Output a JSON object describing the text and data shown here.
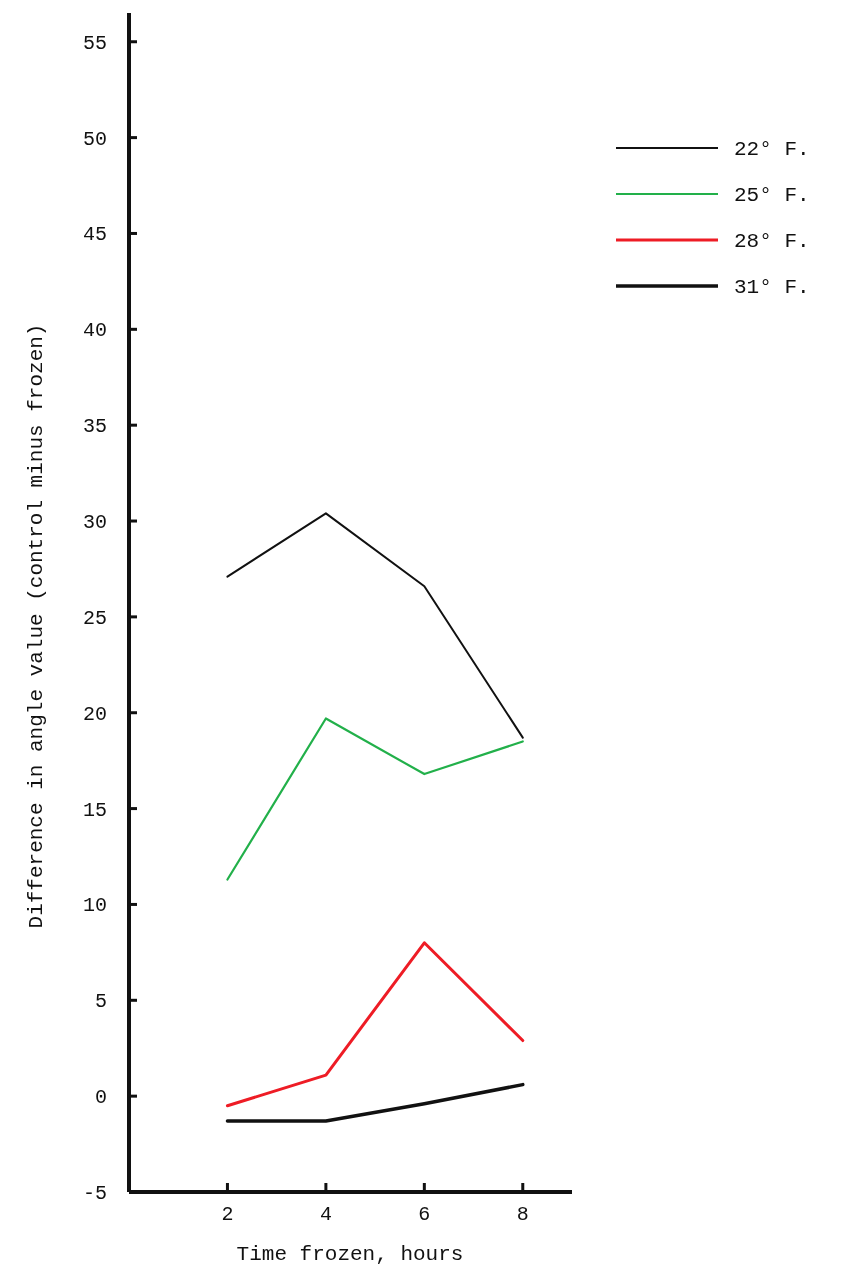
{
  "chart_data": {
    "type": "line",
    "xlabel": "Time frozen, hours",
    "ylabel": "Difference in angle value (control minus frozen)",
    "x": [
      2,
      4,
      6,
      8
    ],
    "xlim": [
      0,
      9
    ],
    "xticks": [
      2,
      4,
      6,
      8
    ],
    "ylim": [
      -5,
      56.5
    ],
    "yticks": [
      -5,
      0,
      5,
      10,
      15,
      20,
      25,
      30,
      35,
      40,
      45,
      50,
      55
    ],
    "series": [
      {
        "name": "22° F.",
        "color": "#111111",
        "values": [
          27.1,
          30.4,
          26.6,
          18.7
        ]
      },
      {
        "name": "25° F.",
        "color": "#22b04a",
        "values": [
          11.3,
          19.7,
          16.8,
          18.5
        ]
      },
      {
        "name": "28° F.",
        "color": "#ee1c25",
        "values": [
          -0.5,
          1.1,
          8.0,
          2.9
        ]
      },
      {
        "name": "31° F.",
        "color": "#111111",
        "values": [
          -1.3,
          -1.3,
          -0.4,
          0.6
        ]
      }
    ],
    "legend": "top right",
    "grid": false,
    "marker": "none",
    "line_style": "solid"
  }
}
